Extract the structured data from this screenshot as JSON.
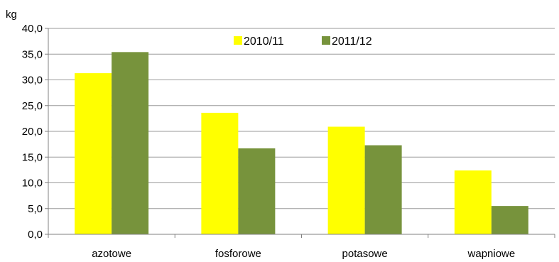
{
  "chart_data": {
    "type": "bar",
    "ylabel": "kg",
    "ylim": [
      0,
      40
    ],
    "ytick_step": 5,
    "ytick_labels": [
      "0,0",
      "5,0",
      "10,0",
      "15,0",
      "20,0",
      "25,0",
      "30,0",
      "35,0",
      "40,0"
    ],
    "categories": [
      "azotowe",
      "fosforowe",
      "potasowe",
      "wapniowe"
    ],
    "series": [
      {
        "name": "2010/11",
        "color": "#ffff00",
        "values": [
          31.3,
          23.6,
          20.9,
          12.4
        ]
      },
      {
        "name": "2011/12",
        "color": "#77933c",
        "values": [
          35.4,
          16.7,
          17.3,
          5.5
        ]
      }
    ],
    "grid": true,
    "legend_position": "top-center"
  }
}
